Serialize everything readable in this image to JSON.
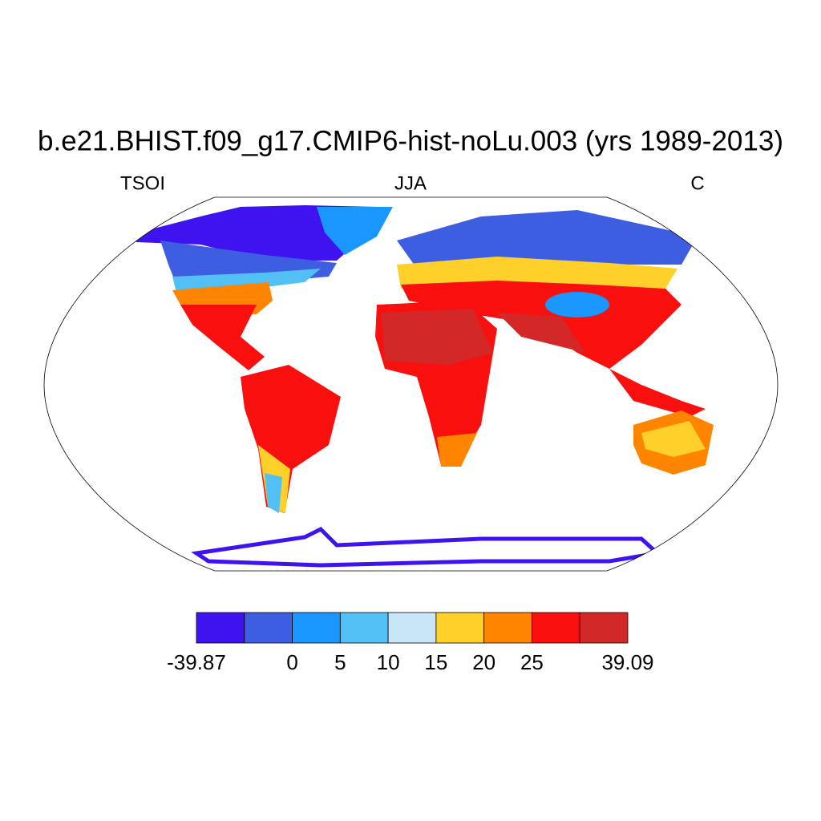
{
  "title": "b.e21.BHIST.f09_g17.CMIP6-hist-noLu.003 (yrs 1989-2013)",
  "left_string": "TSOI",
  "center_string": "JJA",
  "right_string": "C",
  "colorbar": {
    "colors": [
      "#3f12f0",
      "#3d5ee0",
      "#1a96ff",
      "#52c0f5",
      "#c8e6f8",
      "#ffd02a",
      "#ff8500",
      "#fa0f0f",
      "#d42828"
    ],
    "boundaries": [
      -39.87,
      null,
      0,
      5,
      10,
      15,
      20,
      25,
      null,
      39.09
    ]
  }
}
